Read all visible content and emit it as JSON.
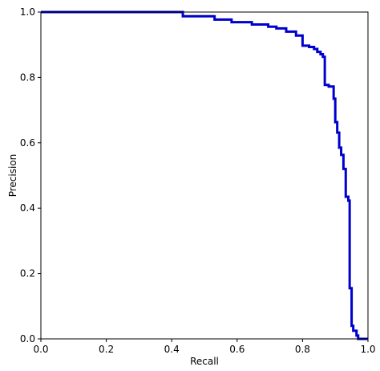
{
  "chart_data": {
    "type": "line",
    "title": "",
    "xlabel": "Recall",
    "ylabel": "Precision",
    "xlim": [
      0.0,
      1.0
    ],
    "ylim": [
      0.0,
      1.0
    ],
    "xticks": [
      "0.0",
      "0.2",
      "0.4",
      "0.6",
      "0.8",
      "1.0"
    ],
    "yticks": [
      "0.0",
      "0.2",
      "0.4",
      "0.6",
      "0.8",
      "1.0"
    ],
    "grid": false,
    "legend": "none",
    "series": [
      {
        "color": "#0000cc",
        "x": [
          0.0,
          0.434,
          0.434,
          0.531,
          0.531,
          0.583,
          0.583,
          0.645,
          0.645,
          0.695,
          0.695,
          0.72,
          0.72,
          0.75,
          0.75,
          0.78,
          0.78,
          0.8,
          0.8,
          0.82,
          0.82,
          0.835,
          0.835,
          0.845,
          0.845,
          0.855,
          0.855,
          0.862,
          0.862,
          0.868,
          0.868,
          0.88,
          0.88,
          0.895,
          0.895,
          0.9,
          0.9,
          0.906,
          0.906,
          0.912,
          0.912,
          0.918,
          0.918,
          0.925,
          0.925,
          0.932,
          0.932,
          0.94,
          0.94,
          0.944,
          0.944,
          0.95,
          0.95,
          0.955,
          0.955,
          0.965,
          0.965,
          0.97,
          0.97,
          1.0
        ],
        "y": [
          1.0,
          1.0,
          0.987,
          0.987,
          0.977,
          0.977,
          0.969,
          0.969,
          0.962,
          0.962,
          0.955,
          0.955,
          0.95,
          0.95,
          0.94,
          0.94,
          0.928,
          0.928,
          0.897,
          0.897,
          0.893,
          0.893,
          0.887,
          0.887,
          0.878,
          0.878,
          0.871,
          0.871,
          0.863,
          0.863,
          0.777,
          0.777,
          0.772,
          0.772,
          0.735,
          0.735,
          0.663,
          0.663,
          0.631,
          0.631,
          0.585,
          0.585,
          0.563,
          0.563,
          0.52,
          0.52,
          0.435,
          0.435,
          0.423,
          0.423,
          0.155,
          0.155,
          0.04,
          0.04,
          0.025,
          0.025,
          0.01,
          0.01,
          0.0,
          0.0
        ]
      }
    ]
  }
}
